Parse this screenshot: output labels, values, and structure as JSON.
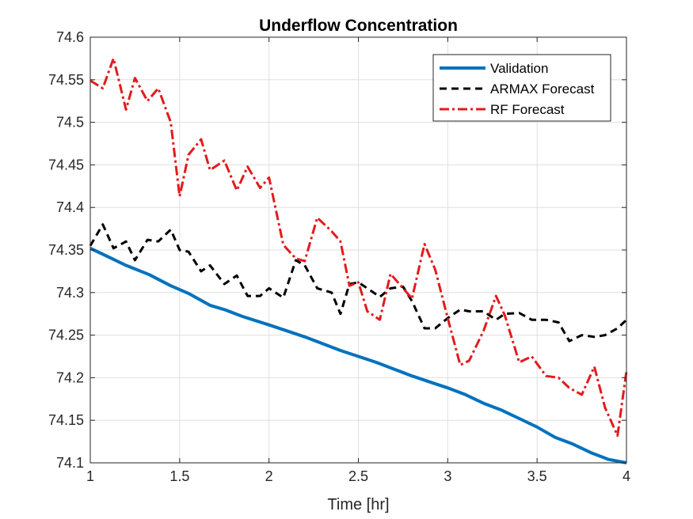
{
  "chart_data": {
    "type": "line",
    "title": "Underflow Concentration",
    "xlabel": "Time [hr]",
    "ylabel": "",
    "xlim": [
      1,
      4
    ],
    "ylim": [
      74.1,
      74.6
    ],
    "xticks": [
      1,
      1.5,
      2,
      2.5,
      3,
      3.5,
      4
    ],
    "yticks": [
      74.1,
      74.15,
      74.2,
      74.25,
      74.3,
      74.35,
      74.4,
      74.45,
      74.5,
      74.55,
      74.6
    ],
    "xtick_labels": [
      "1",
      "1.5",
      "2",
      "2.5",
      "3",
      "3.5",
      "4"
    ],
    "ytick_labels": [
      "74.1",
      "74.15",
      "74.2",
      "74.25",
      "74.3",
      "74.35",
      "74.4",
      "74.45",
      "74.5",
      "74.55",
      "74.6"
    ],
    "grid": true,
    "legend_position": "top-right",
    "series": [
      {
        "name": "Validation",
        "color": "#0072BD",
        "style": "solid",
        "x": [
          1.0,
          1.1,
          1.2,
          1.33,
          1.45,
          1.55,
          1.67,
          1.75,
          1.85,
          2.0,
          2.1,
          2.2,
          2.3,
          2.4,
          2.5,
          2.6,
          2.7,
          2.8,
          2.9,
          3.0,
          3.1,
          3.2,
          3.3,
          3.4,
          3.5,
          3.6,
          3.7,
          3.8,
          3.9,
          4.0
        ],
        "y": [
          74.352,
          74.342,
          74.332,
          74.321,
          74.308,
          74.299,
          74.285,
          74.28,
          74.272,
          74.262,
          74.255,
          74.248,
          74.24,
          74.232,
          74.225,
          74.218,
          74.21,
          74.202,
          74.195,
          74.188,
          74.18,
          74.17,
          74.162,
          74.152,
          74.142,
          74.13,
          74.122,
          74.112,
          74.104,
          74.1
        ]
      },
      {
        "name": "ARMAX Forecast",
        "color": "#000000",
        "style": "dashed",
        "x": [
          1.0,
          1.07,
          1.13,
          1.2,
          1.25,
          1.32,
          1.38,
          1.45,
          1.5,
          1.55,
          1.62,
          1.67,
          1.75,
          1.82,
          1.88,
          1.95,
          2.0,
          2.08,
          2.15,
          2.2,
          2.27,
          2.35,
          2.4,
          2.45,
          2.5,
          2.55,
          2.62,
          2.68,
          2.75,
          2.8,
          2.87,
          2.93,
          3.0,
          3.07,
          3.12,
          3.2,
          3.27,
          3.32,
          3.4,
          3.47,
          3.55,
          3.62,
          3.68,
          3.75,
          3.82,
          3.88,
          3.95,
          4.0
        ],
        "y": [
          74.355,
          74.38,
          74.352,
          74.36,
          74.338,
          74.362,
          74.36,
          74.374,
          74.35,
          74.348,
          74.325,
          74.332,
          74.31,
          74.32,
          74.296,
          74.296,
          74.305,
          74.294,
          74.338,
          74.332,
          74.305,
          74.3,
          74.275,
          74.31,
          74.312,
          74.305,
          74.295,
          74.305,
          74.307,
          74.29,
          74.258,
          74.258,
          74.27,
          74.28,
          74.278,
          74.278,
          74.268,
          74.275,
          74.276,
          74.268,
          74.268,
          74.265,
          74.243,
          74.25,
          74.248,
          74.25,
          74.258,
          74.268
        ]
      },
      {
        "name": "RF Forecast",
        "color": "#E31A1C",
        "style": "dashdot",
        "x": [
          1.0,
          1.07,
          1.13,
          1.2,
          1.25,
          1.32,
          1.38,
          1.45,
          1.5,
          1.55,
          1.62,
          1.67,
          1.75,
          1.82,
          1.88,
          1.95,
          2.0,
          2.08,
          2.15,
          2.2,
          2.27,
          2.35,
          2.4,
          2.45,
          2.5,
          2.55,
          2.62,
          2.68,
          2.75,
          2.8,
          2.87,
          2.93,
          3.0,
          3.07,
          3.12,
          3.2,
          3.27,
          3.32,
          3.4,
          3.47,
          3.55,
          3.62,
          3.68,
          3.75,
          3.82,
          3.88,
          3.95,
          4.0
        ],
        "y": [
          74.549,
          74.54,
          74.575,
          74.515,
          74.552,
          74.525,
          74.54,
          74.5,
          74.413,
          74.462,
          74.48,
          74.444,
          74.455,
          74.42,
          74.448,
          74.423,
          74.435,
          74.356,
          74.34,
          74.337,
          74.388,
          74.372,
          74.36,
          74.308,
          74.312,
          74.278,
          74.268,
          74.322,
          74.305,
          74.293,
          74.357,
          74.327,
          74.27,
          74.215,
          74.22,
          74.255,
          74.296,
          74.273,
          74.218,
          74.225,
          74.202,
          74.2,
          74.188,
          74.18,
          74.213,
          74.165,
          74.132,
          74.208
        ]
      }
    ]
  }
}
